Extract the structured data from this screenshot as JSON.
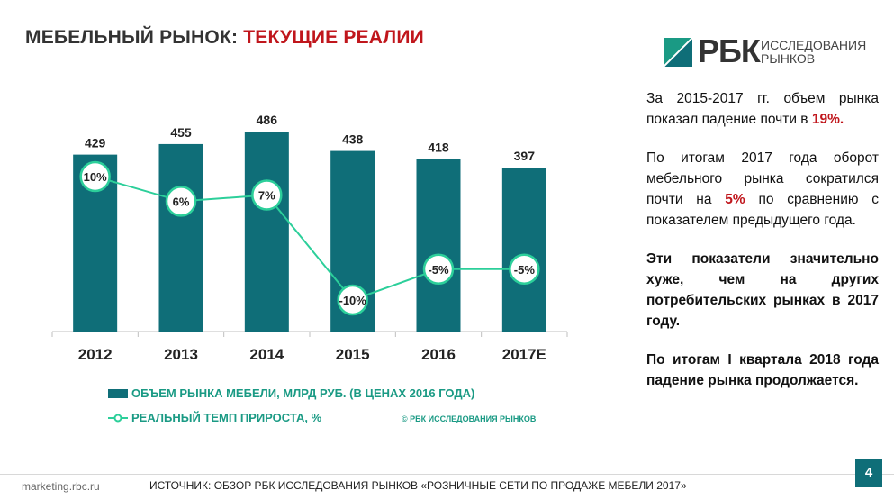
{
  "header": {
    "title_prefix": "МЕБЕЛЬНЫЙ РЫНОК:",
    "title_accent": "ТЕКУЩИЕ РЕАЛИИ",
    "title_accent_color": "#c0161c"
  },
  "logo": {
    "name": "РБК",
    "sub_line1": "ИССЛЕДОВАНИЯ",
    "sub_line2": "РЫНКОВ",
    "mark_icon": "rbc-logo-mark-icon"
  },
  "chart_data": {
    "type": "bar",
    "categories": [
      "2012",
      "2013",
      "2014",
      "2015",
      "2016",
      "2017E"
    ],
    "series": [
      {
        "name": "ОБЪЕМ РЫНКА МЕБЕЛИ, МЛРД РУБ. (В ЦЕНАХ 2016 ГОДА)",
        "type": "bar",
        "color": "#0f6e78",
        "values": [
          429,
          455,
          486,
          438,
          418,
          397
        ],
        "labels": [
          "429",
          "455",
          "486",
          "438",
          "418",
          "397"
        ]
      },
      {
        "name": "РЕАЛЬНЫЙ ТЕМП ПРИРОСТА, %",
        "type": "line",
        "color": "#2ccf9a",
        "values": [
          10,
          6,
          7,
          -10,
          -5,
          -5
        ],
        "labels": [
          "10%",
          "6%",
          "7%",
          "-10%",
          "-5%",
          "-5%"
        ]
      }
    ],
    "grid": false,
    "legend_position": "bottom"
  },
  "chart_notes": {
    "copyright": "© РБК ИССЛЕДОВАНИЯ РЫНКОВ"
  },
  "sidebar": {
    "p1_a": "За 2015-2017 гг. объем рынка показал падение почти в",
    "p1_b": "19%.",
    "p2_a": "По итогам 2017 года оборот мебельного рынка сократился почти на",
    "p2_b": "5%",
    "p2_c": "по сравнению с показателем предыдущего года.",
    "p3": "Эти показатели значительно хуже, чем на других потребительских рынках в 2017 году.",
    "p4": "По итогам I квартала 2018 года падение рынка продолжается."
  },
  "footer": {
    "site": "marketing.rbc.ru",
    "source": "ИСТОЧНИК:  ОБЗОР РБК ИССЛЕДОВАНИЯ РЫНКОВ  «РОЗНИЧНЫЕ СЕТИ ПО ПРОДАЖЕ МЕБЕЛИ 2017»",
    "page": "4"
  }
}
